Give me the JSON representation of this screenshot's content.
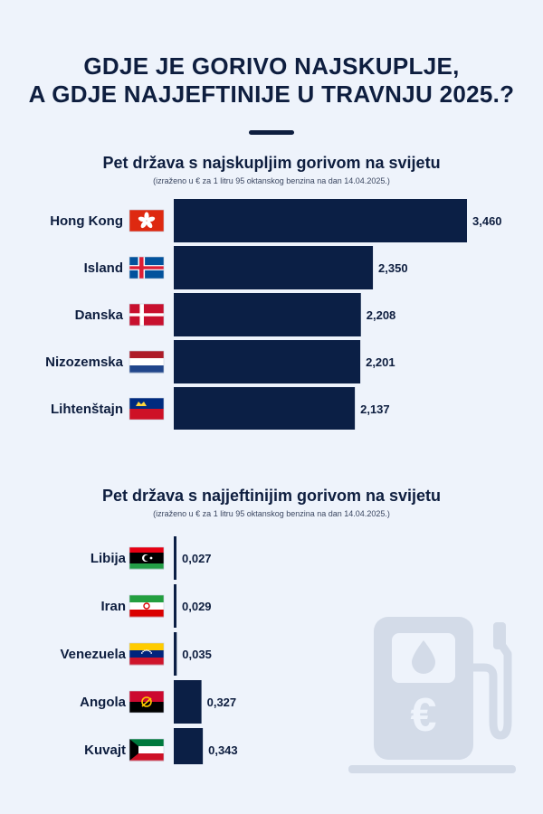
{
  "header": {
    "title_line1": "GDJE JE GORIVO NAJSKUPLJE,",
    "title_line2": "A GDJE NAJJEFTINIJE U TRAVNJU 2025.?"
  },
  "colors": {
    "bar": "#0b1f45",
    "background": "#eef3fb",
    "text": "#0e1e3f"
  },
  "chart_data": [
    {
      "type": "bar",
      "orientation": "horizontal",
      "title": "Pet država s najskupljim gorivom na svijetu",
      "subtitle": "(izraženo u € za 1 litru 95 oktanskog benzina na dan 14.04.2025.)",
      "categories": [
        "Hong Kong",
        "Island",
        "Danska",
        "Nizozemska",
        "Lihtenštajn"
      ],
      "values": [
        3.46,
        2.35,
        2.208,
        2.201,
        2.137
      ],
      "value_labels": [
        "3,460",
        "2,350",
        "2,208",
        "2,201",
        "2,137"
      ],
      "flags": [
        "flag-hong-kong-icon",
        "flag-iceland-icon",
        "flag-denmark-icon",
        "flag-netherlands-icon",
        "flag-liechtenstein-icon"
      ],
      "xlim": [
        0,
        3.46
      ],
      "grid": false,
      "legend": "none"
    },
    {
      "type": "bar",
      "orientation": "horizontal",
      "title": "Pet država s najjeftinijim gorivom na svijetu",
      "subtitle": "(izraženo u € za 1 litru 95 oktanskog benzina na dan 14.04.2025.)",
      "categories": [
        "Libija",
        "Iran",
        "Venezuela",
        "Angola",
        "Kuvajt"
      ],
      "values": [
        0.027,
        0.029,
        0.035,
        0.327,
        0.343
      ],
      "value_labels": [
        "0,027",
        "0,029",
        "0,035",
        "0,327",
        "0,343"
      ],
      "flags": [
        "flag-libya-icon",
        "flag-iran-icon",
        "flag-venezuela-icon",
        "flag-angola-icon",
        "flag-kuwait-icon"
      ],
      "xlim": [
        0,
        3.46
      ],
      "grid": false,
      "legend": "none"
    }
  ],
  "decoration": {
    "icon": "fuel-pump-euro-icon"
  }
}
